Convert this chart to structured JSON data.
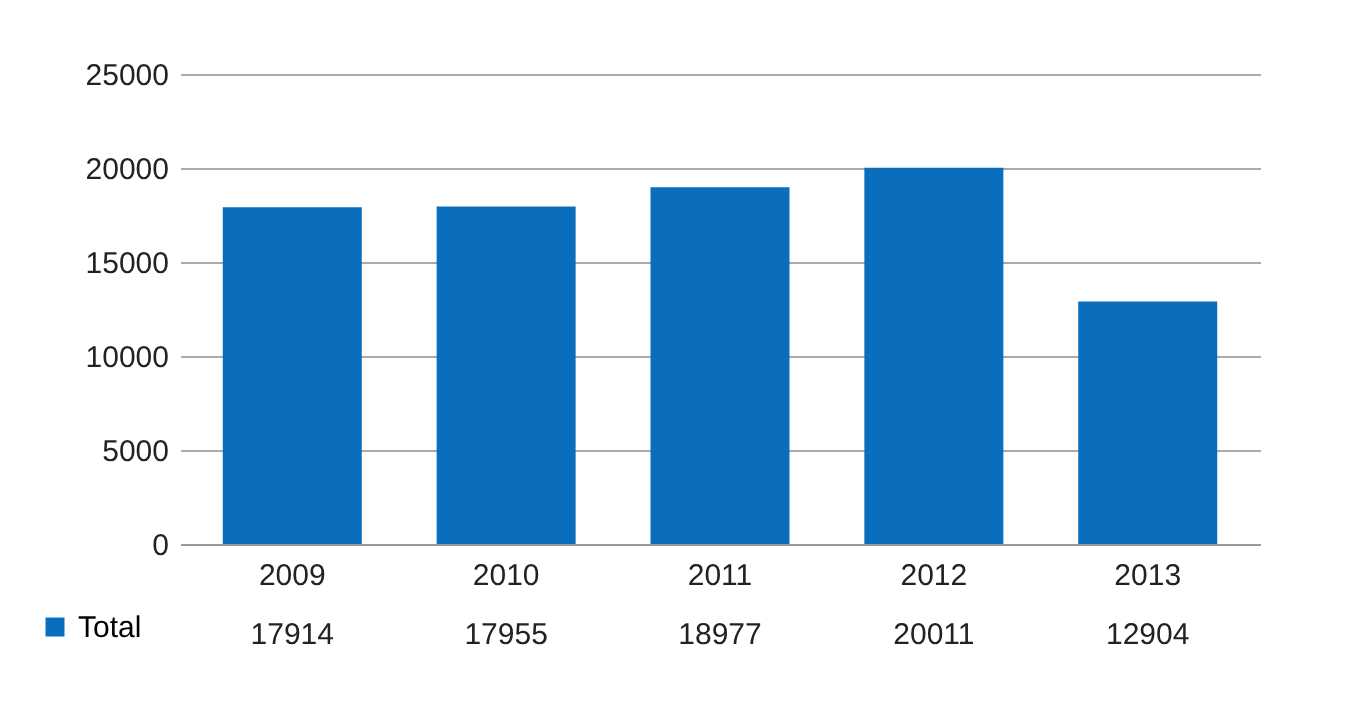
{
  "chart_data": {
    "type": "bar",
    "categories": [
      "2009",
      "2010",
      "2011",
      "2012",
      "2013"
    ],
    "series": [
      {
        "name": "Total",
        "color": "#0a6ebd",
        "values": [
          17914,
          17955,
          18977,
          20011,
          12904
        ]
      }
    ],
    "ylim": [
      0,
      25000
    ],
    "yticks": [
      0,
      5000,
      10000,
      15000,
      20000,
      25000
    ],
    "grid": "y",
    "legend": "bottom left",
    "data_labels": true
  }
}
